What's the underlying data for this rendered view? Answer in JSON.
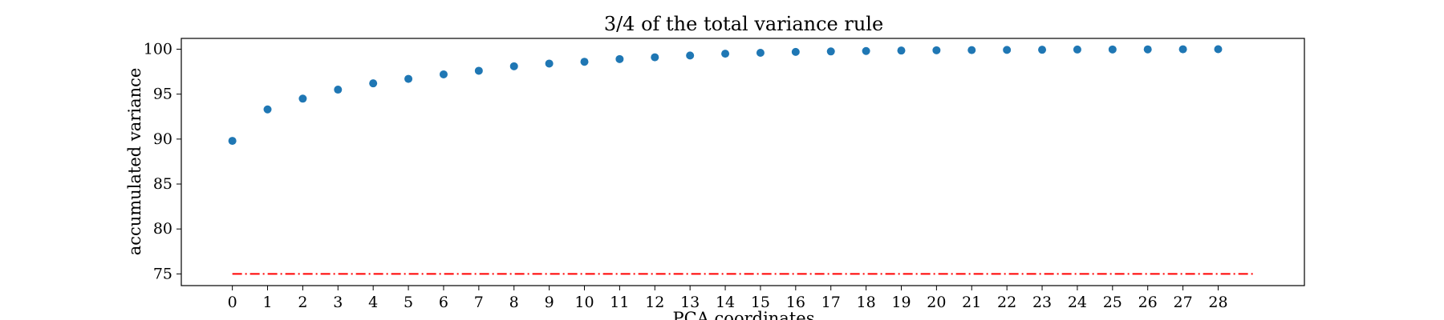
{
  "chart_data": {
    "type": "scatter",
    "title": "3/4 of the total variance rule",
    "xlabel": "PCA coordinates",
    "ylabel": "accumulated variance",
    "x": [
      0,
      1,
      2,
      3,
      4,
      5,
      6,
      7,
      8,
      9,
      10,
      11,
      12,
      13,
      14,
      15,
      16,
      17,
      18,
      19,
      20,
      21,
      22,
      23,
      24,
      25,
      26,
      27,
      28
    ],
    "series": [
      {
        "values": [
          89.8,
          93.3,
          94.5,
          95.5,
          96.2,
          96.7,
          97.2,
          97.6,
          98.1,
          98.4,
          98.6,
          98.9,
          99.1,
          99.3,
          99.5,
          99.6,
          99.7,
          99.75,
          99.8,
          99.85,
          99.88,
          99.9,
          99.92,
          99.94,
          99.96,
          99.97,
          99.98,
          99.99,
          100.0
        ],
        "color": "#1f77b4"
      }
    ],
    "reference_line": {
      "y": 75,
      "x_range": [
        0,
        29
      ],
      "color": "#ff0000",
      "style": "dash-dot"
    },
    "xticks": [
      0,
      1,
      2,
      3,
      4,
      5,
      6,
      7,
      8,
      9,
      10,
      11,
      12,
      13,
      14,
      15,
      16,
      17,
      18,
      19,
      20,
      21,
      22,
      23,
      24,
      25,
      26,
      27,
      28
    ],
    "yticks": [
      75,
      80,
      85,
      90,
      95,
      100
    ],
    "xlim": [
      -1.45,
      30.45
    ],
    "ylim": [
      73.7,
      101.2
    ],
    "grid": false,
    "legend": "none"
  }
}
